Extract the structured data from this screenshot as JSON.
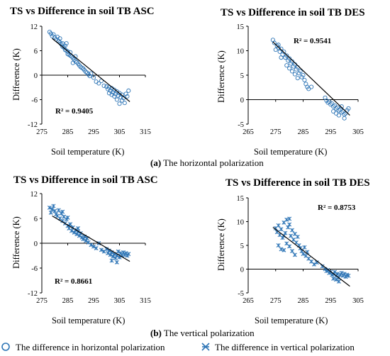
{
  "captions": [
    {
      "letter": "(a)",
      "text": " The horizontal polarization"
    },
    {
      "letter": "(b)",
      "text": " The vertical polarization"
    }
  ],
  "legend": [
    {
      "label": "The difference in horizontal polarization",
      "marker": "circle",
      "color": "#2e75b6"
    },
    {
      "label": "The difference in vertical polarization",
      "marker": "asterisk",
      "color": "#2e75b6"
    }
  ],
  "chart_data": [
    {
      "type": "scatter",
      "title": "TS vs Difference in soil TB ASC",
      "xlabel": "Soil temperature (K)",
      "ylabel": "Difference (K)",
      "xlim": [
        275,
        315
      ],
      "ylim": [
        -12,
        12
      ],
      "xticks": [
        275,
        285,
        295,
        305,
        315
      ],
      "yticks": [
        12,
        6,
        0,
        -6,
        -12
      ],
      "marker": "circle",
      "color": "#2e75b6",
      "annotation": "R² = 0.9405",
      "trendline": [
        [
          279,
          9.0
        ],
        [
          309,
          -6.5
        ]
      ],
      "points": [
        [
          278,
          10.6
        ],
        [
          278.5,
          10.2
        ],
        [
          279,
          9.6
        ],
        [
          279.5,
          10.0
        ],
        [
          280,
          9.2
        ],
        [
          280.5,
          8.8
        ],
        [
          281,
          9.4
        ],
        [
          281.5,
          8.4
        ],
        [
          282,
          8.0
        ],
        [
          282.5,
          7.6
        ],
        [
          283,
          7.8
        ],
        [
          283,
          7.0
        ],
        [
          283.5,
          6.8
        ],
        [
          284,
          7.2
        ],
        [
          284,
          6.2
        ],
        [
          284.5,
          6.0
        ],
        [
          285,
          5.8
        ],
        [
          285,
          5.2
        ],
        [
          285.5,
          5.0
        ],
        [
          286,
          4.8
        ],
        [
          286.5,
          4.6
        ],
        [
          287,
          4.2
        ],
        [
          287.5,
          3.8
        ],
        [
          288,
          3.4
        ],
        [
          288.5,
          3.2
        ],
        [
          289,
          2.8
        ],
        [
          289.5,
          2.4
        ],
        [
          290,
          2.0
        ],
        [
          290.5,
          1.8
        ],
        [
          291,
          1.6
        ],
        [
          291.5,
          1.2
        ],
        [
          292,
          0.8
        ],
        [
          292.5,
          0.6
        ],
        [
          293,
          0.2
        ],
        [
          293.5,
          -0.2
        ],
        [
          294,
          0.4
        ],
        [
          295,
          -0.6
        ],
        [
          296,
          -1.6
        ],
        [
          297,
          -2.0
        ],
        [
          298,
          -1.4
        ],
        [
          299,
          -2.6
        ],
        [
          300,
          -2.8
        ],
        [
          300.5,
          -3.4
        ],
        [
          301,
          -3.0
        ],
        [
          301.5,
          -3.8
        ],
        [
          302,
          -3.2
        ],
        [
          302.5,
          -4.2
        ],
        [
          303,
          -3.6
        ],
        [
          303.5,
          -4.6
        ],
        [
          304,
          -4.0
        ],
        [
          304.5,
          -5.0
        ],
        [
          305,
          -4.4
        ],
        [
          305.5,
          -5.4
        ],
        [
          306,
          -4.8
        ],
        [
          306,
          -6.2
        ],
        [
          306.5,
          -5.6
        ],
        [
          307,
          -6.8
        ],
        [
          307.5,
          -4.6
        ],
        [
          308,
          -5.2
        ],
        [
          308.5,
          -3.8
        ],
        [
          305,
          -7.0
        ],
        [
          304,
          -6.0
        ],
        [
          303,
          -5.2
        ],
        [
          302,
          -4.8
        ],
        [
          301,
          -4.4
        ],
        [
          287,
          3.0
        ],
        [
          288,
          4.6
        ],
        [
          286,
          5.6
        ],
        [
          284.5,
          7.8
        ],
        [
          282,
          9.0
        ]
      ]
    },
    {
      "type": "scatter",
      "title": "TS vs Difference in soil TB DES",
      "xlabel": "Soil temperature (K)",
      "ylabel": "Difference (K)",
      "xlim": [
        265,
        305
      ],
      "ylim": [
        -5,
        15
      ],
      "xticks": [
        265,
        275,
        285,
        295,
        305
      ],
      "yticks": [
        15,
        10,
        5,
        0,
        -5
      ],
      "marker": "circle",
      "color": "#2e75b6",
      "annotation": "R² = 0.9541",
      "trendline": [
        [
          274,
          11.8
        ],
        [
          302,
          -3.2
        ]
      ],
      "points": [
        [
          274,
          12.2
        ],
        [
          274.5,
          11.6
        ],
        [
          275,
          10.2
        ],
        [
          275.5,
          11.0
        ],
        [
          276,
          10.6
        ],
        [
          276.5,
          9.8
        ],
        [
          277,
          10.4
        ],
        [
          277.5,
          9.2
        ],
        [
          278,
          9.8
        ],
        [
          278.5,
          8.6
        ],
        [
          279,
          9.0
        ],
        [
          279.5,
          8.0
        ],
        [
          280,
          8.4
        ],
        [
          280.5,
          7.4
        ],
        [
          281,
          7.8
        ],
        [
          281.5,
          6.8
        ],
        [
          282,
          7.2
        ],
        [
          282.5,
          6.2
        ],
        [
          283,
          6.6
        ],
        [
          283.5,
          5.4
        ],
        [
          284,
          5.8
        ],
        [
          284.5,
          4.6
        ],
        [
          285,
          5.0
        ],
        [
          285.5,
          4.0
        ],
        [
          286,
          3.2
        ],
        [
          286.5,
          2.6
        ],
        [
          287,
          2.2
        ],
        [
          288,
          2.6
        ],
        [
          279,
          7.0
        ],
        [
          280,
          6.4
        ],
        [
          281,
          5.8
        ],
        [
          282,
          5.2
        ],
        [
          293,
          0.4
        ],
        [
          293.5,
          -0.2
        ],
        [
          294,
          -0.6
        ],
        [
          294.5,
          -0.4
        ],
        [
          295,
          -1.0
        ],
        [
          295.5,
          -0.8
        ],
        [
          296,
          -1.4
        ],
        [
          296.5,
          -1.2
        ],
        [
          297,
          -1.8
        ],
        [
          297.5,
          -1.6
        ],
        [
          298,
          -2.2
        ],
        [
          298.5,
          -2.0
        ],
        [
          299,
          -2.6
        ],
        [
          299.5,
          -2.4
        ],
        [
          300,
          -3.0
        ],
        [
          300.5,
          -2.8
        ],
        [
          301,
          -2.2
        ],
        [
          301.5,
          -1.8
        ],
        [
          299,
          -1.4
        ],
        [
          298,
          -3.2
        ],
        [
          300,
          -3.8
        ],
        [
          297,
          -2.8
        ],
        [
          296,
          -2.4
        ],
        [
          276,
          11.2
        ],
        [
          277,
          8.6
        ],
        [
          283,
          4.4
        ]
      ]
    },
    {
      "type": "scatter",
      "title": "TS vs Difference in soil TB ASC",
      "xlabel": "Soil temperature (K)",
      "ylabel": "Difference (K)",
      "xlim": [
        275,
        315
      ],
      "ylim": [
        -12,
        12
      ],
      "xticks": [
        275,
        285,
        295,
        305,
        315
      ],
      "yticks": [
        12,
        6,
        0,
        -6,
        -12
      ],
      "marker": "asterisk",
      "color": "#2e75b6",
      "annotation": "R² = 0.8661",
      "trendline": [
        [
          279,
          6.6
        ],
        [
          309,
          -4.4
        ]
      ],
      "points": [
        [
          278,
          8.6
        ],
        [
          278.5,
          7.4
        ],
        [
          279,
          8.2
        ],
        [
          279.5,
          9.0
        ],
        [
          280,
          7.8
        ],
        [
          280.5,
          7.0
        ],
        [
          281,
          6.6
        ],
        [
          281.5,
          8.0
        ],
        [
          282,
          6.0
        ],
        [
          282.5,
          7.2
        ],
        [
          283,
          5.4
        ],
        [
          283.5,
          6.4
        ],
        [
          284,
          4.8
        ],
        [
          284.5,
          5.8
        ],
        [
          285,
          4.2
        ],
        [
          285.5,
          3.6
        ],
        [
          286,
          4.6
        ],
        [
          286.5,
          3.0
        ],
        [
          287,
          3.8
        ],
        [
          287.5,
          2.6
        ],
        [
          288,
          3.2
        ],
        [
          288.5,
          2.2
        ],
        [
          289,
          2.8
        ],
        [
          289.5,
          1.8
        ],
        [
          290,
          2.4
        ],
        [
          290.5,
          1.4
        ],
        [
          291,
          1.0
        ],
        [
          291.5,
          1.6
        ],
        [
          292,
          0.6
        ],
        [
          292.5,
          1.2
        ],
        [
          293,
          0.2
        ],
        [
          294,
          -0.4
        ],
        [
          295,
          -0.8
        ],
        [
          296,
          -1.2
        ],
        [
          297,
          0.0
        ],
        [
          298,
          -1.6
        ],
        [
          299,
          -2.0
        ],
        [
          300,
          -1.4
        ],
        [
          300.5,
          -2.4
        ],
        [
          301,
          -1.8
        ],
        [
          301.5,
          -2.8
        ],
        [
          302,
          -2.2
        ],
        [
          302.5,
          -3.2
        ],
        [
          303,
          -2.6
        ],
        [
          303.5,
          -3.6
        ],
        [
          304,
          -3.0
        ],
        [
          304.5,
          -2.0
        ],
        [
          305,
          -3.4
        ],
        [
          305.5,
          -2.4
        ],
        [
          306,
          -3.0
        ],
        [
          306.5,
          -2.2
        ],
        [
          307,
          -2.8
        ],
        [
          307.5,
          -2.4
        ],
        [
          308,
          -3.0
        ],
        [
          308.5,
          -2.6
        ],
        [
          302,
          -4.2
        ],
        [
          304,
          -4.6
        ],
        [
          285,
          6.2
        ],
        [
          283,
          7.6
        ],
        [
          289,
          3.6
        ]
      ]
    },
    {
      "type": "scatter",
      "title": "TS vs Difference in soil TB DES",
      "xlabel": "Soil temperature (K)",
      "ylabel": "Difference (K)",
      "xlim": [
        265,
        305
      ],
      "ylim": [
        -5,
        15
      ],
      "xticks": [
        265,
        275,
        285,
        295,
        305
      ],
      "yticks": [
        15,
        10,
        5,
        0,
        -5
      ],
      "marker": "asterisk",
      "color": "#2e75b6",
      "annotation": "R² = 0.8753",
      "trendline": [
        [
          274,
          8.8
        ],
        [
          302,
          -3.6
        ]
      ],
      "points": [
        [
          275,
          8.6
        ],
        [
          275.5,
          7.8
        ],
        [
          276,
          9.2
        ],
        [
          276.5,
          7.2
        ],
        [
          277,
          8.4
        ],
        [
          277.5,
          6.6
        ],
        [
          278,
          9.8
        ],
        [
          278.5,
          7.6
        ],
        [
          279,
          10.4
        ],
        [
          279.5,
          8.8
        ],
        [
          280,
          9.4
        ],
        [
          280.5,
          7.0
        ],
        [
          281,
          8.2
        ],
        [
          281.5,
          6.2
        ],
        [
          282,
          7.4
        ],
        [
          282.5,
          5.6
        ],
        [
          283,
          6.8
        ],
        [
          283.5,
          5.0
        ],
        [
          284,
          4.4
        ],
        [
          284.5,
          3.8
        ],
        [
          285,
          3.2
        ],
        [
          285.5,
          4.6
        ],
        [
          286,
          2.8
        ],
        [
          286.5,
          3.6
        ],
        [
          287,
          2.2
        ],
        [
          288,
          1.6
        ],
        [
          289,
          1.0
        ],
        [
          290,
          1.4
        ],
        [
          276,
          5.0
        ],
        [
          277,
          4.2
        ],
        [
          278,
          4.0
        ],
        [
          279,
          5.4
        ],
        [
          280,
          4.8
        ],
        [
          281,
          3.8
        ],
        [
          282,
          3.0
        ],
        [
          292,
          0.6
        ],
        [
          293,
          0.0
        ],
        [
          293.5,
          -0.4
        ],
        [
          294,
          -0.2
        ],
        [
          294.5,
          -0.8
        ],
        [
          295,
          -0.6
        ],
        [
          295.5,
          -1.2
        ],
        [
          296,
          -1.0
        ],
        [
          296.5,
          -0.6
        ],
        [
          297,
          -1.4
        ],
        [
          297.5,
          -1.0
        ],
        [
          298,
          -1.8
        ],
        [
          298.5,
          -1.2
        ],
        [
          299,
          -0.8
        ],
        [
          299.5,
          -1.4
        ],
        [
          300,
          -1.0
        ],
        [
          300.5,
          -1.6
        ],
        [
          301,
          -1.2
        ],
        [
          301.5,
          -1.4
        ],
        [
          297,
          -2.2
        ],
        [
          298,
          -2.6
        ],
        [
          296,
          -2.0
        ],
        [
          280,
          10.6
        ],
        [
          278,
          7.0
        ]
      ]
    }
  ]
}
